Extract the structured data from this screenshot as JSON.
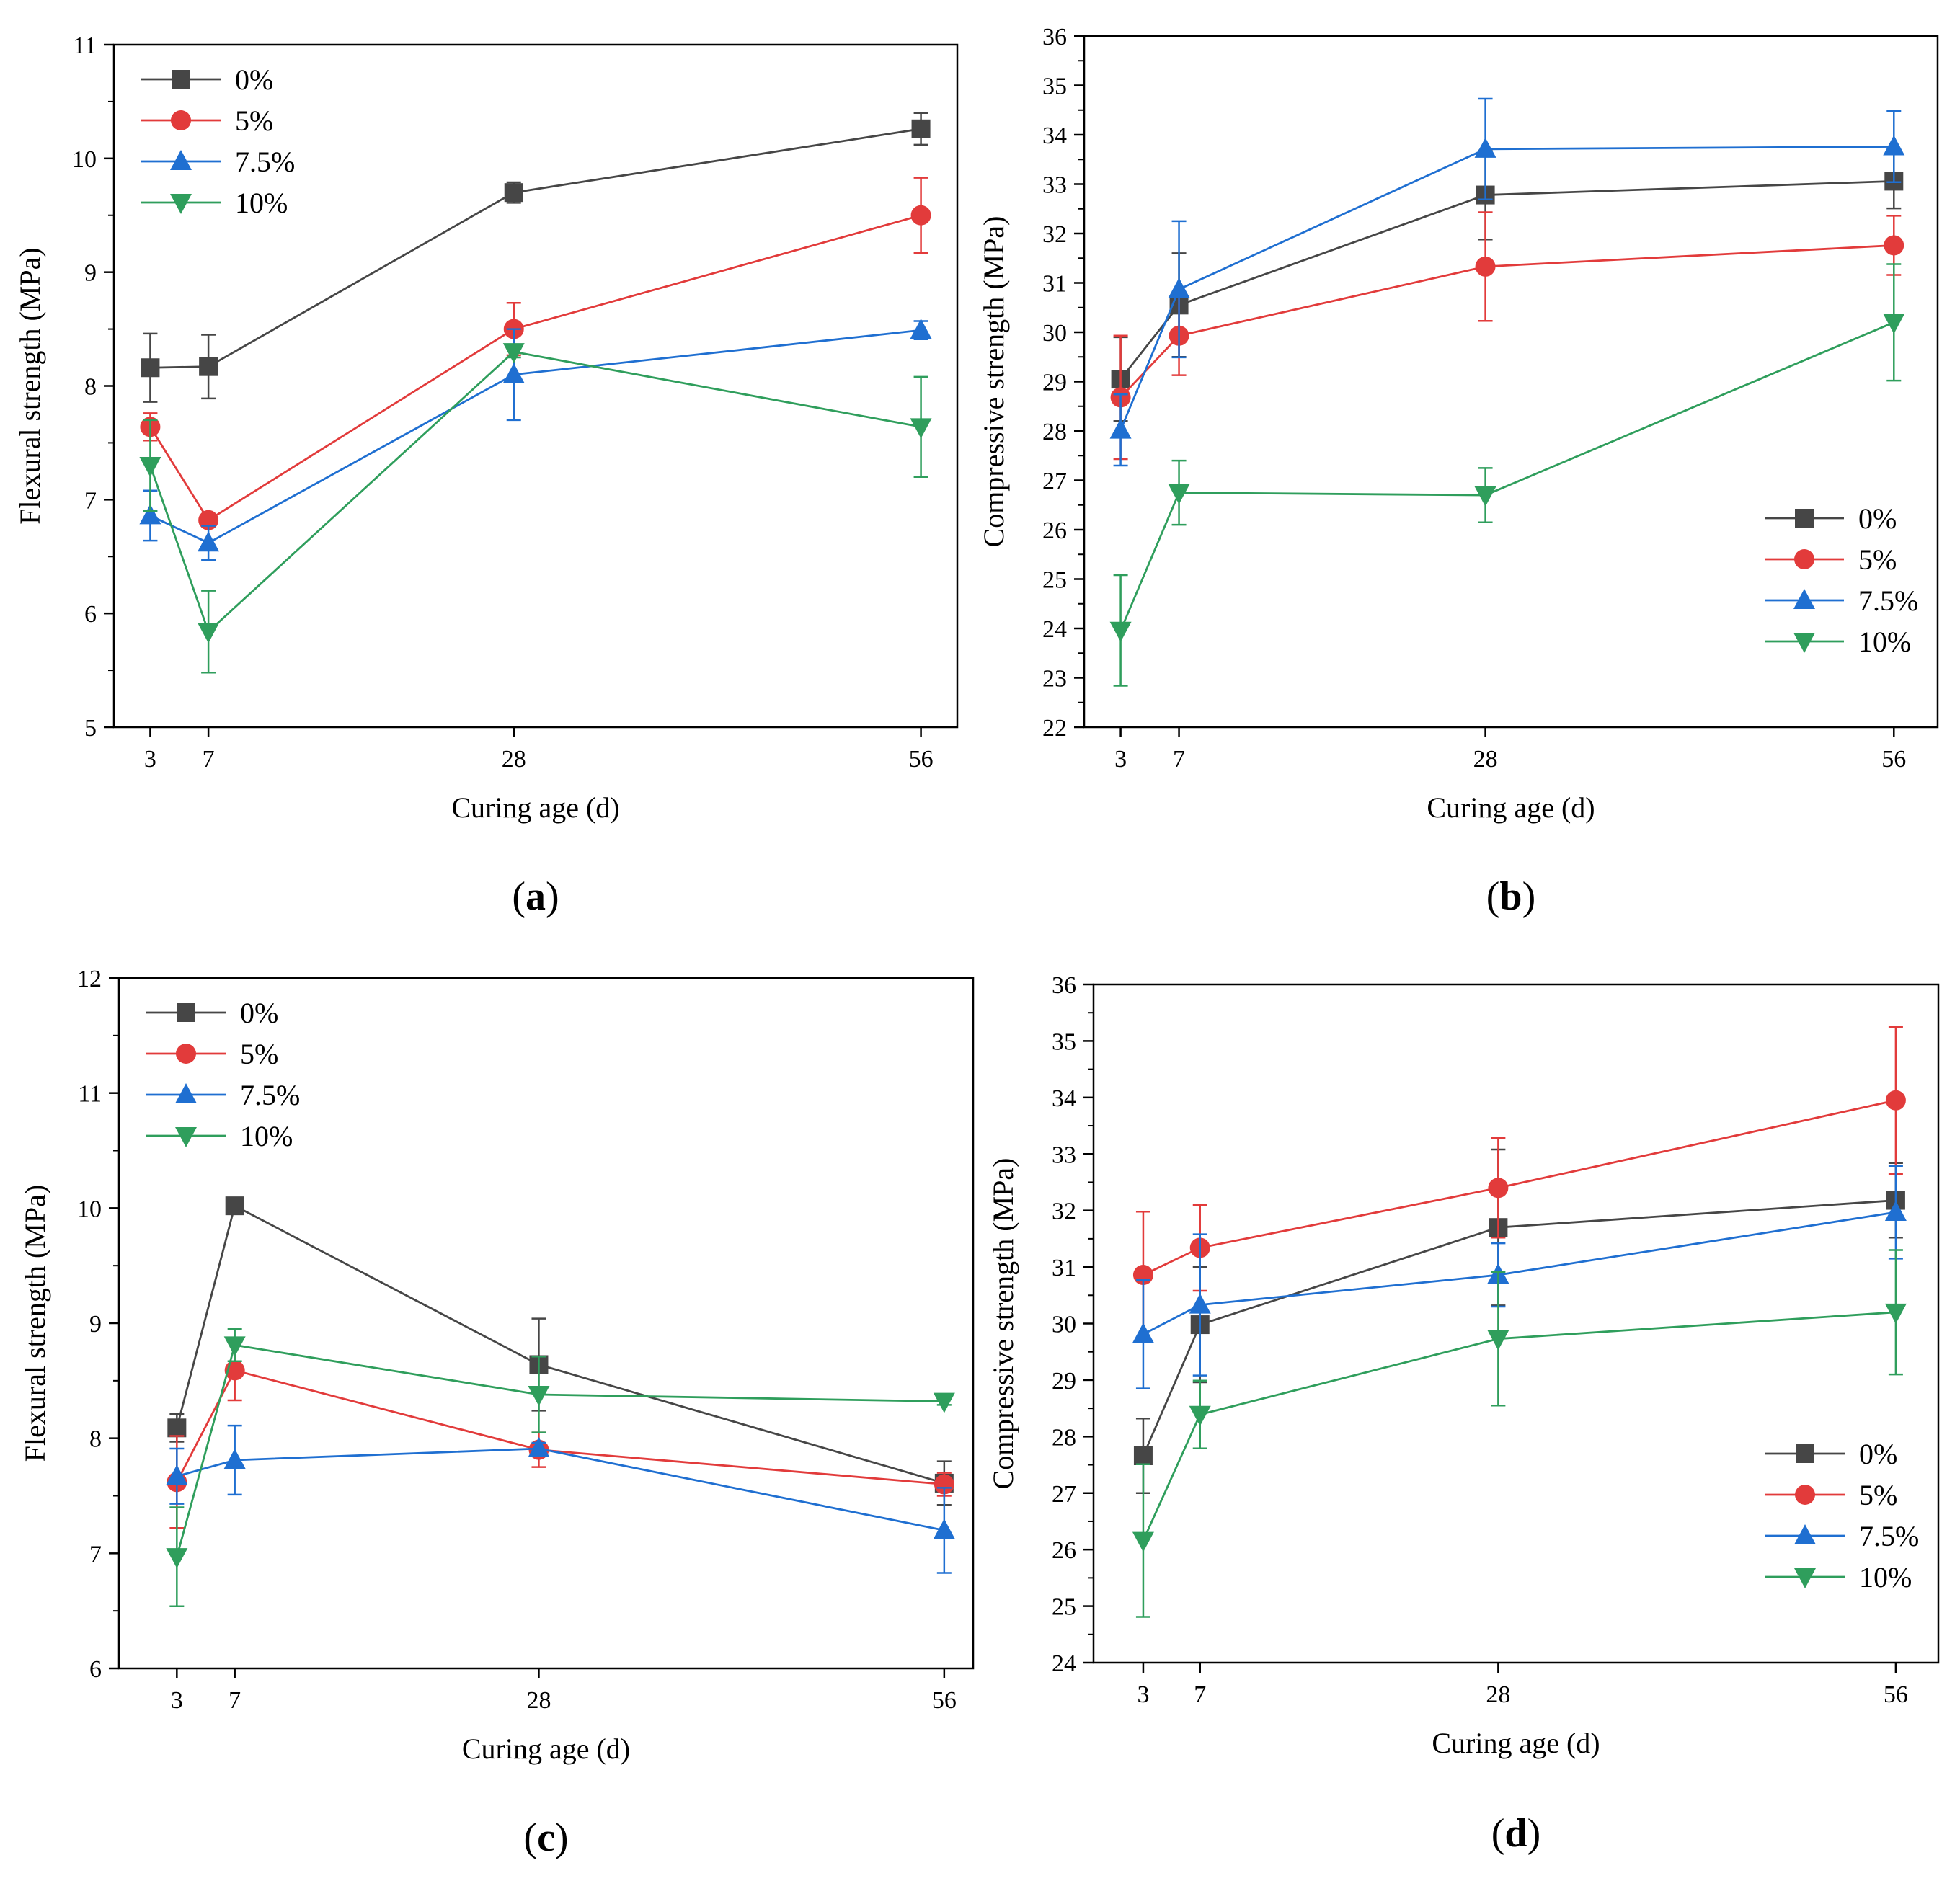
{
  "series_colors": {
    "0%": "#464646",
    "5%": "#e23b3b",
    "7.5%": "#1f6fd1",
    "10%": "#2f9e5c"
  },
  "series_markers": {
    "0%": "square",
    "5%": "circle",
    "7.5%": "triangle-up",
    "10%": "triangle-down"
  },
  "chart_data": [
    {
      "id": "a",
      "panel_label": "a",
      "type": "line",
      "xlabel": "Curing age (d)",
      "ylabel": "Flexural strength (MPa)",
      "x": [
        3,
        7,
        28,
        56
      ],
      "xticks": [
        3,
        7,
        28,
        56
      ],
      "xlim": [
        0.5,
        58.5
      ],
      "ylim": [
        5,
        11
      ],
      "yticks": [
        5,
        6,
        7,
        8,
        9,
        10,
        11
      ],
      "legend_position": "top-left",
      "series": [
        {
          "name": "0%",
          "values": [
            8.16,
            8.17,
            9.7,
            10.26
          ],
          "errors": [
            0.3,
            0.28,
            0.09,
            0.14
          ]
        },
        {
          "name": "5%",
          "values": [
            7.64,
            6.82,
            8.5,
            9.5
          ],
          "errors": [
            0.12,
            0.05,
            0.23,
            0.33
          ]
        },
        {
          "name": "7.5%",
          "values": [
            6.86,
            6.62,
            8.1,
            8.49
          ],
          "errors": [
            0.22,
            0.15,
            0.4,
            0.08
          ]
        },
        {
          "name": "10%",
          "values": [
            7.3,
            5.84,
            8.3,
            7.64
          ],
          "errors": [
            0.4,
            0.36,
            0.05,
            0.44
          ]
        }
      ]
    },
    {
      "id": "b",
      "panel_label": "b",
      "type": "line",
      "xlabel": "Curing age (d)",
      "ylabel": "Compressive strength (MPa)",
      "x": [
        3,
        7,
        28,
        56
      ],
      "xticks": [
        3,
        7,
        28,
        56
      ],
      "xlim": [
        0.5,
        59
      ],
      "ylim": [
        22,
        36
      ],
      "yticks": [
        22,
        23,
        24,
        25,
        26,
        27,
        28,
        29,
        30,
        31,
        32,
        33,
        34,
        35,
        36
      ],
      "legend_position": "bottom-right",
      "series": [
        {
          "name": "0%",
          "values": [
            29.05,
            30.55,
            32.78,
            33.06
          ],
          "errors": [
            0.85,
            1.05,
            0.9,
            0.55
          ]
        },
        {
          "name": "5%",
          "values": [
            28.68,
            29.93,
            31.33,
            31.76
          ],
          "errors": [
            1.25,
            0.8,
            1.1,
            0.6
          ]
        },
        {
          "name": "7.5%",
          "values": [
            28.02,
            30.87,
            33.71,
            33.76
          ],
          "errors": [
            0.72,
            1.38,
            1.02,
            0.72
          ]
        },
        {
          "name": "10%",
          "values": [
            23.96,
            26.75,
            26.7,
            30.2
          ],
          "errors": [
            1.12,
            0.65,
            0.55,
            1.18
          ]
        }
      ]
    },
    {
      "id": "c",
      "panel_label": "c",
      "type": "line",
      "xlabel": "Curing age (d)",
      "ylabel": "Flexural strength (MPa)",
      "x": [
        3,
        7,
        28,
        56
      ],
      "xticks": [
        3,
        7,
        28,
        56
      ],
      "xlim": [
        -1,
        58
      ],
      "ylim": [
        6,
        12
      ],
      "yticks": [
        6,
        7,
        8,
        9,
        10,
        11,
        12
      ],
      "legend_position": "top-left",
      "series": [
        {
          "name": "0%",
          "values": [
            8.09,
            10.02,
            8.64,
            7.61
          ],
          "errors": [
            0.12,
            0.03,
            0.4,
            0.19
          ]
        },
        {
          "name": "5%",
          "values": [
            7.62,
            8.59,
            7.9,
            7.6
          ],
          "errors": [
            0.4,
            0.26,
            0.15,
            0.1
          ]
        },
        {
          "name": "7.5%",
          "values": [
            7.67,
            7.81,
            7.91,
            7.2
          ],
          "errors": [
            0.24,
            0.3,
            0.05,
            0.37
          ]
        },
        {
          "name": "10%",
          "values": [
            6.97,
            8.81,
            8.38,
            8.32
          ],
          "errors": [
            0.43,
            0.14,
            0.33,
            0.03
          ]
        }
      ]
    },
    {
      "id": "d",
      "panel_label": "d",
      "type": "line",
      "xlabel": "Curing age (d)",
      "ylabel": "Compressive strength (MPa)",
      "x": [
        3,
        7,
        28,
        56
      ],
      "xticks": [
        3,
        7,
        28,
        56
      ],
      "xlim": [
        -0.5,
        59
      ],
      "ylim": [
        24,
        36
      ],
      "yticks": [
        24,
        25,
        26,
        27,
        28,
        29,
        30,
        31,
        32,
        33,
        34,
        35,
        36
      ],
      "legend_position": "bottom-right",
      "series": [
        {
          "name": "0%",
          "values": [
            27.66,
            29.98,
            31.7,
            32.18
          ],
          "errors": [
            0.66,
            1.02,
            1.38,
            0.66
          ]
        },
        {
          "name": "5%",
          "values": [
            30.86,
            31.34,
            32.4,
            33.95
          ],
          "errors": [
            1.12,
            0.76,
            0.88,
            1.3
          ]
        },
        {
          "name": "7.5%",
          "values": [
            29.81,
            30.33,
            30.86,
            31.97
          ],
          "errors": [
            0.96,
            1.25,
            0.56,
            0.82
          ]
        },
        {
          "name": "10%",
          "values": [
            26.16,
            28.39,
            29.73,
            30.2
          ],
          "errors": [
            1.35,
            0.6,
            1.18,
            1.1
          ]
        }
      ]
    }
  ]
}
